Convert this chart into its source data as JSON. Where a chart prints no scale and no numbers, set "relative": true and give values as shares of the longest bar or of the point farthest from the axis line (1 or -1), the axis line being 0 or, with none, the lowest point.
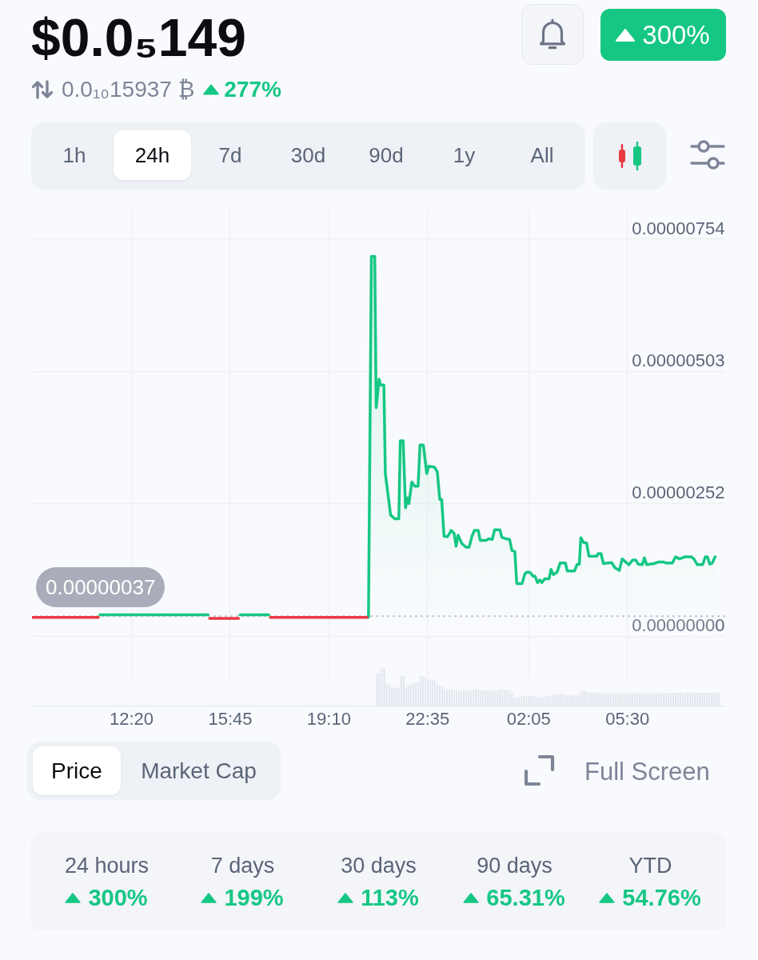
{
  "chart_data": [
    {
      "type": "line",
      "title": "$0.0₅149",
      "subtitle": "0.0₁₀15937 ₿",
      "annotations": [
        "277%",
        "300%",
        "1h",
        "24h",
        "7d",
        "30d",
        "90d",
        "1y",
        "All",
        "Price",
        "Market Cap",
        "Full Screen"
      ],
      "xlim": [
        "--01-01T08:54",
        "--01-02T08:54"
      ],
      "xticks": [
        {
          "value": "--01-01T12:20",
          "label": null
        },
        {
          "value": "--01-01T15:45",
          "label": null
        },
        {
          "value": "--01-01T19:10",
          "label": null
        },
        {
          "value": "--01-01T22:35",
          "label": null
        },
        {
          "value": "--01-02T02:05",
          "label": null
        },
        {
          "value": "--01-02T05:30",
          "label": null
        }
      ],
      "ylim": [
        -8e-08,
        8.09e-06
      ],
      "yticks": [
        {
          "value": 0,
          "label": "0.00000000"
        },
        {
          "value": 2.52e-06,
          "label": "0.00000252"
        },
        {
          "value": 5.03e-06,
          "label": "0.00000503"
        },
        {
          "value": 7.54e-06,
          "label": "0.00000754"
        }
      ],
      "grid": true,
      "tick_labels": "y",
      "ref_lines": [
        {
          "axis": "y",
          "value": 3.7e-07,
          "label": "0.00000037",
          "color": "#c4c8d0",
          "line_style": "dotted"
        }
      ],
      "series": [
        {
          "type": "area",
          "color": "#16c784",
          "x": [
            "--01-01T20:33",
            "--01-01T20:39",
            "--01-01T20:46",
            "--01-01T20:49",
            "--01-01T20:55",
            "--01-01T20:58",
            "--01-01T21:05",
            "--01-01T21:08",
            "--01-01T21:19",
            "--01-01T21:28",
            "--01-01T21:36",
            "--01-01T21:39",
            "--01-01T21:45",
            "--01-01T21:50",
            "--01-01T21:54",
            "--01-01T21:57",
            "--01-01T22:03",
            "--01-01T22:09",
            "--01-01T22:16",
            "--01-01T22:20",
            "--01-01T22:27",
            "--01-01T22:34",
            "--01-01T22:38",
            "--01-01T22:50",
            "--01-01T22:56",
            "--01-01T23:01",
            "--01-01T23:05",
            "--01-01T23:10",
            "--01-01T23:17",
            "--01-01T23:25",
            "--01-01T23:31",
            "--01-01T23:35",
            "--01-01T23:39",
            "--01-01T23:47",
            "--01-01T23:56",
            "--01-02T00:02",
            "--01-02T00:08",
            "--01-02T00:13",
            "--01-02T00:21",
            "--01-02T00:25",
            "--01-02T00:37",
            "--01-02T00:43",
            "--01-02T00:50",
            "--01-02T00:55",
            "--01-02T01:06",
            "--01-02T01:10",
            "--01-02T01:19",
            "--01-02T01:26",
            "--01-02T01:31",
            "--01-02T01:37",
            "--01-02T01:41",
            "--01-02T01:52",
            "--01-02T01:58",
            "--01-02T02:03",
            "--01-02T02:09",
            "--01-02T02:15",
            "--01-02T02:19",
            "--01-02T02:24",
            "--01-02T02:29",
            "--01-02T02:33",
            "--01-02T02:39",
            "--01-02T02:48",
            "--01-02T02:52",
            "--01-02T02:57",
            "--01-02T03:05",
            "--01-02T03:11",
            "--01-02T03:22",
            "--01-02T03:26",
            "--01-02T03:41",
            "--01-02T03:46",
            "--01-02T03:51",
            "--01-02T03:54",
            "--01-02T04:00",
            "--01-02T04:06",
            "--01-02T04:11",
            "--01-02T04:27",
            "--01-02T04:30",
            "--01-02T04:36",
            "--01-02T04:41",
            "--01-02T04:58",
            "--01-02T05:05",
            "--01-02T05:14",
            "--01-02T05:20",
            "--01-02T05:26",
            "--01-02T05:34",
            "--01-02T05:42",
            "--01-02T05:48",
            "--01-02T05:53",
            "--01-02T06:02",
            "--01-02T06:06",
            "--01-02T06:11",
            "--01-02T06:26",
            "--01-02T06:35",
            "--01-02T06:46",
            "--01-02T06:52",
            "--01-02T07:04",
            "--01-02T07:11",
            "--01-02T07:19",
            "--01-02T07:31",
            "--01-02T07:43",
            "--01-02T07:49",
            "--01-02T07:56",
            "--01-02T08:07",
            "--01-02T08:13",
            "--01-02T08:17",
            "--01-02T08:22",
            "--01-02T08:27",
            "--01-02T08:33"
          ],
          "values": [
            3.5e-07,
            7.2e-06,
            7.2e-06,
            4.33e-06,
            4.87e-06,
            4.76e-06,
            4.76e-06,
            3.08e-06,
            2.29e-06,
            2.22e-06,
            2.22e-06,
            3.7e-06,
            3.7e-06,
            2.43e-06,
            2.62e-06,
            2.51e-06,
            2.92e-06,
            2.84e-06,
            2.84e-06,
            3.62e-06,
            3.62e-06,
            3.08e-06,
            3.22e-06,
            3.2e-06,
            3.11e-06,
            2.59e-06,
            2.59e-06,
            1.89e-06,
            1.88e-06,
            2e-06,
            1.94e-06,
            1.7e-06,
            1.91e-06,
            1.75e-06,
            1.68e-06,
            1.68e-06,
            1.89e-06,
            2e-06,
            2e-06,
            1.81e-06,
            1.81e-06,
            1.84e-06,
            1.83e-06,
            2.01e-06,
            2.01e-06,
            1.87e-06,
            1.84e-06,
            1.83e-06,
            1.62e-06,
            1.6e-06,
            9.9e-07,
            9.9e-07,
            1.18e-06,
            1.21e-06,
            1.2e-06,
            1.13e-06,
            1.13e-06,
            1.01e-06,
            1.06e-06,
            1.01e-06,
            1.08e-06,
            1.08e-06,
            1.26e-06,
            1.16e-06,
            1.21e-06,
            1.38e-06,
            1.38e-06,
            1.23e-06,
            1.23e-06,
            1.35e-06,
            1.36e-06,
            1.86e-06,
            1.77e-06,
            1.76e-06,
            1.51e-06,
            1.51e-06,
            1.56e-06,
            1.56e-06,
            1.37e-06,
            1.39e-06,
            1.29e-06,
            1.24e-06,
            1.46e-06,
            1.41e-06,
            1.35e-06,
            1.44e-06,
            1.44e-06,
            1.36e-06,
            1.35e-06,
            1.48e-06,
            1.35e-06,
            1.37e-06,
            1.4e-06,
            1.4e-06,
            1.38e-06,
            1.38e-06,
            1.5e-06,
            1.46e-06,
            1.5e-06,
            1.5e-06,
            1.46e-06,
            1.35e-06,
            1.35e-06,
            1.5e-06,
            1.5e-06,
            1.36e-06,
            1.38e-06,
            1.5e-06
          ]
        },
        {
          "type": "line",
          "color": "#16c784",
          "x": [
            "--01-01T11:15",
            "--01-01T15:00",
            "--01-01T15:30",
            "--01-01T16:06",
            "--01-01T17:06"
          ],
          "values": [
            4e-07,
            4e-07,
            null,
            4e-07,
            4e-07
          ]
        },
        {
          "type": "line",
          "color": "#ea3943",
          "x": [
            "--01-01T08:54",
            "--01-01T11:12",
            "--01-01T13:00",
            "--01-01T15:03",
            "--01-01T16:03",
            "--01-01T16:36",
            "--01-01T17:09",
            "--01-01T20:30"
          ],
          "values": [
            3.5e-07,
            3.5e-07,
            null,
            3.3e-07,
            3.3e-07,
            null,
            3.5e-07,
            3.5e-07
          ]
        }
      ]
    },
    {
      "type": "bar",
      "relative": true,
      "color": "#e3e6ee",
      "xlim": [
        "--01-01T08:54",
        "--01-02T08:54"
      ],
      "xticks": [
        {
          "value": "--01-01T12:20",
          "label": "12:20"
        },
        {
          "value": "--01-01T15:45",
          "label": "15:45"
        },
        {
          "value": "--01-01T19:10",
          "label": "19:10"
        },
        {
          "value": "--01-01T22:35",
          "label": "22:35"
        },
        {
          "value": "--01-02T02:05",
          "label": "02:05"
        },
        {
          "value": "--01-02T05:30",
          "label": "05:30"
        }
      ],
      "grid": "x",
      "tick_labels": "x",
      "x": [
        "--01-01T20:51",
        "--01-01T20:56",
        "--01-01T21:01",
        "--01-01T21:06",
        "--01-01T21:11",
        "--01-01T21:16",
        "--01-01T21:21",
        "--01-01T21:26",
        "--01-01T21:31",
        "--01-01T21:36",
        "--01-01T21:41",
        "--01-01T21:46",
        "--01-01T21:51",
        "--01-01T21:56",
        "--01-01T22:01",
        "--01-01T22:06",
        "--01-01T22:11",
        "--01-01T22:16",
        "--01-01T22:21",
        "--01-01T22:26",
        "--01-01T22:31",
        "--01-01T22:36",
        "--01-01T22:41",
        "--01-01T22:46",
        "--01-01T22:51",
        "--01-01T22:56",
        "--01-01T23:01",
        "--01-01T23:06",
        "--01-01T23:11",
        "--01-01T23:16",
        "--01-01T23:21",
        "--01-01T23:26",
        "--01-01T23:31",
        "--01-01T23:36",
        "--01-01T23:41",
        "--01-01T23:46",
        "--01-01T23:51",
        "--01-01T23:56",
        "--01-02T00:01",
        "--01-02T00:06",
        "--01-02T00:11",
        "--01-02T00:16",
        "--01-02T00:21",
        "--01-02T00:26",
        "--01-02T00:31",
        "--01-02T00:36",
        "--01-02T00:41",
        "--01-02T00:46",
        "--01-02T00:51",
        "--01-02T00:56",
        "--01-02T01:01",
        "--01-02T01:06",
        "--01-02T01:11",
        "--01-02T01:16",
        "--01-02T01:21",
        "--01-02T01:26",
        "--01-02T01:31",
        "--01-02T01:36",
        "--01-02T01:41",
        "--01-02T01:46",
        "--01-02T01:51",
        "--01-02T01:56",
        "--01-02T02:01",
        "--01-02T02:06",
        "--01-02T02:11",
        "--01-02T02:16",
        "--01-02T02:21",
        "--01-02T02:26",
        "--01-02T02:31",
        "--01-02T02:36",
        "--01-02T02:41",
        "--01-02T02:46",
        "--01-02T02:51",
        "--01-02T02:56",
        "--01-02T03:01",
        "--01-02T03:06",
        "--01-02T03:11",
        "--01-02T03:16",
        "--01-02T03:21",
        "--01-02T03:26",
        "--01-02T03:31",
        "--01-02T03:36",
        "--01-02T03:41",
        "--01-02T03:46",
        "--01-02T03:51",
        "--01-02T03:56",
        "--01-02T04:01",
        "--01-02T04:06",
        "--01-02T04:11",
        "--01-02T04:16",
        "--01-02T04:21",
        "--01-02T04:26",
        "--01-02T04:31",
        "--01-02T04:36",
        "--01-02T04:41",
        "--01-02T04:46",
        "--01-02T04:51",
        "--01-02T04:56",
        "--01-02T05:01",
        "--01-02T05:06",
        "--01-02T05:11",
        "--01-02T05:16",
        "--01-02T05:21",
        "--01-02T05:26",
        "--01-02T05:31",
        "--01-02T05:36",
        "--01-02T05:41",
        "--01-02T05:46",
        "--01-02T05:51",
        "--01-02T05:56",
        "--01-02T06:01",
        "--01-02T06:06",
        "--01-02T06:11",
        "--01-02T06:16",
        "--01-02T06:21",
        "--01-02T06:26",
        "--01-02T06:31",
        "--01-02T06:36",
        "--01-02T06:41",
        "--01-02T06:46",
        "--01-02T06:51",
        "--01-02T06:56",
        "--01-02T07:01",
        "--01-02T07:06",
        "--01-02T07:11",
        "--01-02T07:16",
        "--01-02T07:21",
        "--01-02T07:26",
        "--01-02T07:31",
        "--01-02T07:36",
        "--01-02T07:41",
        "--01-02T07:46",
        "--01-02T07:51",
        "--01-02T07:56",
        "--01-02T08:01",
        "--01-02T08:06",
        "--01-02T08:11",
        "--01-02T08:16",
        "--01-02T08:21",
        "--01-02T08:26",
        "--01-02T08:31",
        "--01-02T08:36",
        "--01-02T08:41"
      ],
      "values": [
        0.87,
        0.87,
        1,
        1,
        0.58,
        0.56,
        0.48,
        0.47,
        0.48,
        0.48,
        0.79,
        0.79,
        0.49,
        0.55,
        0.56,
        0.61,
        0.61,
        0.62,
        0.79,
        0.78,
        0.75,
        0.69,
        0.69,
        0.7,
        0.69,
        0.57,
        0.53,
        0.53,
        0.44,
        0.45,
        0.44,
        0.43,
        0.4,
        0.42,
        0.4,
        0.39,
        0.41,
        0.4,
        0.4,
        0.39,
        0.44,
        0.44,
        0.43,
        0.4,
        0.41,
        0.4,
        0.4,
        0.41,
        0.4,
        0.41,
        0.4,
        0.43,
        0.43,
        0.42,
        0.43,
        0.42,
        0.35,
        0.22,
        0.22,
        0.23,
        0.24,
        0.25,
        0.27,
        0.27,
        0.26,
        0.24,
        0.23,
        0.22,
        0.22,
        0.23,
        0.24,
        0.25,
        0.26,
        0.28,
        0.29,
        0.29,
        0.3,
        0.3,
        0.28,
        0.27,
        0.27,
        0.27,
        0.28,
        0.27,
        0.3,
        0.4,
        0.39,
        0.38,
        0.35,
        0.36,
        0.35,
        0.35,
        0.34,
        0.35,
        0.32,
        0.32,
        0.33,
        0.32,
        0.32,
        0.33,
        0.33,
        0.32,
        0.32,
        0.33,
        0.32,
        0.32,
        0.33,
        0.33,
        0.32,
        0.32,
        0.33,
        0.33,
        0.32,
        0.33,
        0.33,
        0.33,
        0.32,
        0.33,
        0.33,
        0.33,
        0.34,
        0.33,
        0.33,
        0.34,
        0.34,
        0.34,
        0.35,
        0.35,
        0.34,
        0.35,
        0.35,
        0.34,
        0.35,
        0.34,
        0.34,
        0.34,
        0.33,
        0.34,
        0.34,
        0.35,
        0.33,
        0.34,
        0.35
      ]
    },
    {
      "type": "other",
      "categories": [
        "24 hours",
        "7 days",
        "30 days",
        "90 days",
        "YTD"
      ],
      "values": [
        300,
        199,
        113,
        65.31,
        54.76
      ],
      "value_labels": [
        "300%",
        "199%",
        "113%",
        "65.31%",
        "54.76%"
      ]
    }
  ]
}
